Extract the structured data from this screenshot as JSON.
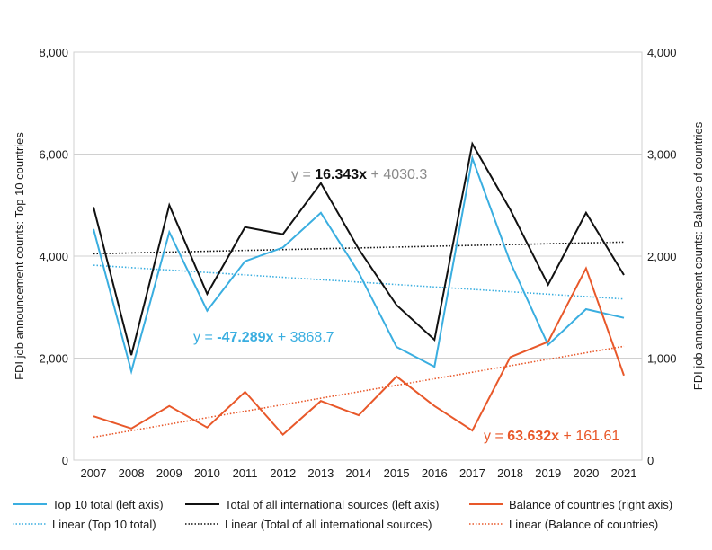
{
  "chart_data": {
    "type": "line",
    "categories": [
      "2007",
      "2008",
      "2009",
      "2010",
      "2011",
      "2012",
      "2013",
      "2014",
      "2015",
      "2016",
      "2017",
      "2018",
      "2019",
      "2020",
      "2021"
    ],
    "y_left": {
      "label": "FDI job announcement counts: Top 10 countries",
      "ylim": [
        0,
        8000
      ],
      "ticks": [
        0,
        2000,
        4000,
        6000,
        8000
      ],
      "tick_labels": [
        "0",
        "2,000",
        "4,000",
        "6,000",
        "8,000"
      ]
    },
    "y_right": {
      "label": "FDI job announcement counts: Balance of countries",
      "ylim": [
        0,
        4000
      ],
      "ticks": [
        0,
        1000,
        2000,
        3000,
        4000
      ],
      "tick_labels": [
        "0",
        "1,000",
        "2,000",
        "3,000",
        "4,000"
      ]
    },
    "grid": "horizontal",
    "legend_position": "bottom",
    "series": [
      {
        "name": "Top 10 total (left axis)",
        "axis": "left",
        "color": "#3aaee0",
        "style": "solid",
        "values": [
          4530,
          1740,
          4470,
          2930,
          3900,
          4170,
          4850,
          3680,
          2220,
          1830,
          5920,
          3880,
          2260,
          2960,
          2790
        ]
      },
      {
        "name": "Total of all international sources (left axis)",
        "axis": "left",
        "color": "#111111",
        "style": "solid",
        "values": [
          4960,
          2060,
          5000,
          3260,
          4570,
          4430,
          5430,
          4140,
          3040,
          2360,
          6200,
          4910,
          3440,
          4850,
          3630
        ]
      },
      {
        "name": "Balance of countries (right axis)",
        "axis": "right",
        "color": "#e8582a",
        "style": "solid",
        "values": [
          430,
          310,
          530,
          320,
          670,
          250,
          580,
          440,
          820,
          530,
          290,
          1010,
          1160,
          1880,
          830
        ]
      },
      {
        "name": "Linear (Top 10 total)",
        "axis": "left",
        "color": "#3aaee0",
        "style": "dotted",
        "trend": {
          "slope": -47.289,
          "intercept": 3868.7
        }
      },
      {
        "name": "Linear (Total of all international sources)",
        "axis": "left",
        "color": "#111111",
        "style": "dotted",
        "trend": {
          "slope": 16.343,
          "intercept": 4030.3
        }
      },
      {
        "name": "Linear (Balance of countries)",
        "axis": "right",
        "color": "#e8582a",
        "style": "dotted",
        "trend": {
          "slope": 63.632,
          "intercept": 161.61
        }
      }
    ],
    "annotations": [
      {
        "id": "eq-total",
        "prefix": "y = ",
        "coef": "16.343x",
        "suffix": " + 4030.3",
        "color": "#111111",
        "suffix_color": "#8a8a8a"
      },
      {
        "id": "eq-top10",
        "prefix": "y = ",
        "coef": "-47.289x",
        "suffix": " + 3868.7",
        "color": "#3aaee0",
        "suffix_color": "#3aaee0"
      },
      {
        "id": "eq-balance",
        "prefix": "y = ",
        "coef": "63.632x",
        "suffix": " + 161.61",
        "color": "#e8582a",
        "suffix_color": "#e8582a"
      }
    ]
  }
}
